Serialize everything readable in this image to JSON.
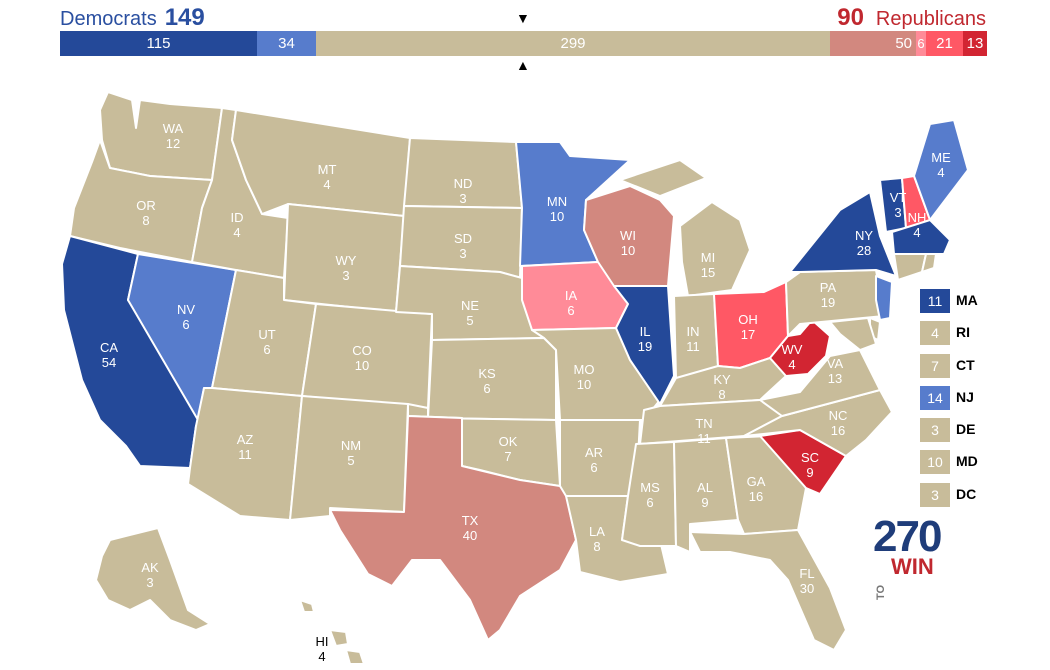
{
  "header": {
    "dem_label": "Democrats",
    "dem_total": "149",
    "rep_total": "90",
    "rep_label": "Republicans",
    "arrow_down": "▼",
    "arrow_up": "▲"
  },
  "bar": [
    {
      "value": "115",
      "color": "#244999"
    },
    {
      "value": "34",
      "color": "#577ccc"
    },
    {
      "value": "299",
      "color": "#c8bc9a"
    },
    {
      "value": "50",
      "color": "#d2887f"
    },
    {
      "value": "6",
      "color": "#ff8b98"
    },
    {
      "value": "21",
      "color": "#ff5865"
    },
    {
      "value": "13",
      "color": "#d22532"
    }
  ],
  "colors": {
    "safe_dem": "#244999",
    "likely_dem": "#577ccc",
    "tossup": "#c8bc9a",
    "tilt_rep": "#d2887f",
    "lean_rep": "#ff8b98",
    "likely_rep": "#ff5865",
    "safe_rep": "#d22532"
  },
  "states": {
    "WA": {
      "abbr": "WA",
      "ev": "12"
    },
    "OR": {
      "abbr": "OR",
      "ev": "8"
    },
    "CA": {
      "abbr": "CA",
      "ev": "54"
    },
    "NV": {
      "abbr": "NV",
      "ev": "6"
    },
    "ID": {
      "abbr": "ID",
      "ev": "4"
    },
    "MT": {
      "abbr": "MT",
      "ev": "4"
    },
    "WY": {
      "abbr": "WY",
      "ev": "3"
    },
    "UT": {
      "abbr": "UT",
      "ev": "6"
    },
    "AZ": {
      "abbr": "AZ",
      "ev": "11"
    },
    "CO": {
      "abbr": "CO",
      "ev": "10"
    },
    "NM": {
      "abbr": "NM",
      "ev": "5"
    },
    "ND": {
      "abbr": "ND",
      "ev": "3"
    },
    "SD": {
      "abbr": "SD",
      "ev": "3"
    },
    "NE": {
      "abbr": "NE",
      "ev": "5"
    },
    "KS": {
      "abbr": "KS",
      "ev": "6"
    },
    "OK": {
      "abbr": "OK",
      "ev": "7"
    },
    "TX": {
      "abbr": "TX",
      "ev": "40"
    },
    "MN": {
      "abbr": "MN",
      "ev": "10"
    },
    "IA": {
      "abbr": "IA",
      "ev": "6"
    },
    "MO": {
      "abbr": "MO",
      "ev": "10"
    },
    "AR": {
      "abbr": "AR",
      "ev": "6"
    },
    "LA": {
      "abbr": "LA",
      "ev": "8"
    },
    "WI": {
      "abbr": "WI",
      "ev": "10"
    },
    "IL": {
      "abbr": "IL",
      "ev": "19"
    },
    "MI": {
      "abbr": "MI",
      "ev": "15"
    },
    "IN": {
      "abbr": "IN",
      "ev": "11"
    },
    "OH": {
      "abbr": "OH",
      "ev": "17"
    },
    "KY": {
      "abbr": "KY",
      "ev": "8"
    },
    "TN": {
      "abbr": "TN",
      "ev": "11"
    },
    "MS": {
      "abbr": "MS",
      "ev": "6"
    },
    "AL": {
      "abbr": "AL",
      "ev": "9"
    },
    "GA": {
      "abbr": "GA",
      "ev": "16"
    },
    "FL": {
      "abbr": "FL",
      "ev": "30"
    },
    "SC": {
      "abbr": "SC",
      "ev": "9"
    },
    "NC": {
      "abbr": "NC",
      "ev": "16"
    },
    "VA": {
      "abbr": "VA",
      "ev": "13"
    },
    "WV": {
      "abbr": "WV",
      "ev": "4"
    },
    "PA": {
      "abbr": "PA",
      "ev": "19"
    },
    "NY": {
      "abbr": "NY",
      "ev": "28"
    },
    "VT": {
      "abbr": "VT",
      "ev": "3"
    },
    "NH": {
      "abbr": "NH",
      "ev": "4"
    },
    "ME": {
      "abbr": "ME",
      "ev": "4"
    },
    "AK": {
      "abbr": "AK",
      "ev": "3"
    },
    "HI": {
      "abbr": "HI",
      "ev": "4"
    }
  },
  "legend": [
    {
      "ev": "11",
      "state": "MA",
      "color": "#244999"
    },
    {
      "ev": "4",
      "state": "RI",
      "color": "#c8bc9a"
    },
    {
      "ev": "7",
      "state": "CT",
      "color": "#c8bc9a"
    },
    {
      "ev": "14",
      "state": "NJ",
      "color": "#577ccc"
    },
    {
      "ev": "3",
      "state": "DE",
      "color": "#c8bc9a"
    },
    {
      "ev": "10",
      "state": "MD",
      "color": "#c8bc9a"
    },
    {
      "ev": "3",
      "state": "DC",
      "color": "#c8bc9a"
    }
  ],
  "logo": {
    "top": "270",
    "to": "TO",
    "win": "WIN"
  }
}
